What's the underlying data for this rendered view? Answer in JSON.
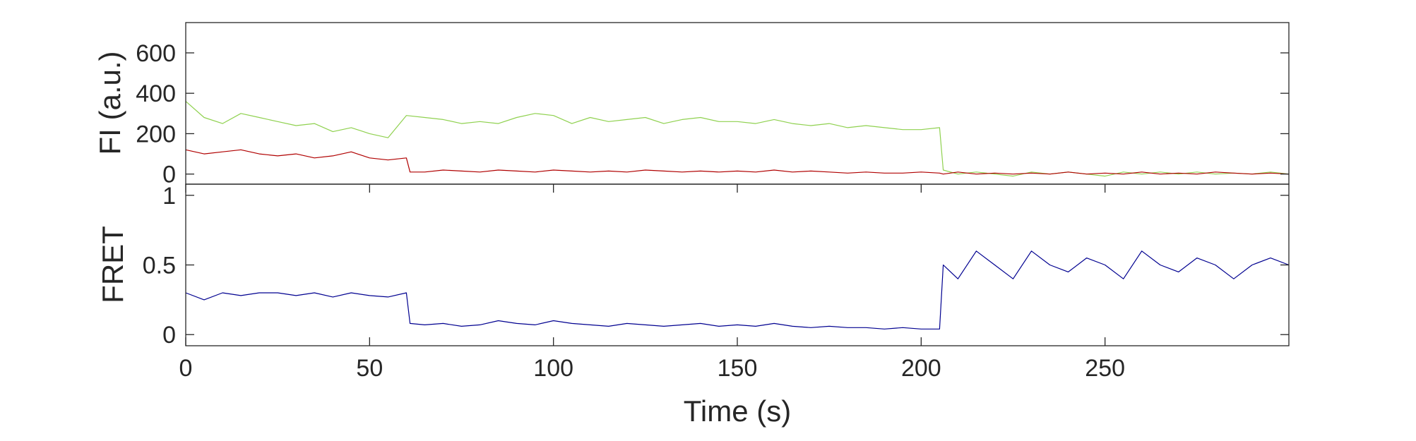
{
  "chart_data": [
    {
      "type": "line",
      "panel": "top",
      "title": "",
      "xlabel": "",
      "ylabel": "FI (a.u.)",
      "xlim": [
        0,
        300
      ],
      "ylim": [
        -50,
        750
      ],
      "yticks": [
        0,
        200,
        400,
        600
      ],
      "ytick_labels": [
        "0",
        "200",
        "400",
        "600"
      ],
      "grid": false,
      "legend": false,
      "colors": {
        "donor": "#8fd14f",
        "acceptor": "#b00000"
      },
      "series": [
        {
          "color": "#8fd14f",
          "x": [
            0,
            5,
            10,
            15,
            20,
            25,
            30,
            35,
            40,
            45,
            50,
            55,
            60,
            65,
            70,
            75,
            80,
            85,
            90,
            95,
            100,
            105,
            110,
            115,
            120,
            125,
            130,
            135,
            140,
            145,
            150,
            155,
            160,
            165,
            170,
            175,
            180,
            185,
            190,
            195,
            200,
            205,
            206,
            210,
            215,
            220,
            225,
            230,
            235,
            240,
            245,
            250,
            255,
            260,
            265,
            270,
            275,
            280,
            285,
            290,
            295,
            300
          ],
          "y": [
            360,
            280,
            250,
            300,
            280,
            260,
            240,
            250,
            210,
            230,
            200,
            180,
            290,
            280,
            270,
            250,
            260,
            250,
            280,
            300,
            290,
            250,
            280,
            260,
            270,
            280,
            250,
            270,
            280,
            260,
            260,
            250,
            270,
            250,
            240,
            250,
            230,
            240,
            230,
            220,
            220,
            230,
            20,
            0,
            10,
            0,
            -10,
            10,
            0,
            10,
            0,
            -10,
            10,
            0,
            10,
            0,
            10,
            0,
            5,
            0,
            10,
            0
          ]
        },
        {
          "color": "#b00000",
          "x": [
            0,
            5,
            10,
            15,
            20,
            25,
            30,
            35,
            40,
            45,
            50,
            55,
            60,
            61,
            65,
            70,
            75,
            80,
            85,
            90,
            95,
            100,
            105,
            110,
            115,
            120,
            125,
            130,
            135,
            140,
            145,
            150,
            155,
            160,
            165,
            170,
            175,
            180,
            185,
            190,
            195,
            200,
            205,
            206,
            210,
            215,
            220,
            225,
            230,
            235,
            240,
            245,
            250,
            255,
            260,
            265,
            270,
            275,
            280,
            285,
            290,
            295,
            300
          ],
          "y": [
            120,
            100,
            110,
            120,
            100,
            90,
            100,
            80,
            90,
            110,
            80,
            70,
            80,
            10,
            10,
            20,
            15,
            10,
            20,
            15,
            10,
            20,
            15,
            10,
            15,
            10,
            20,
            15,
            10,
            15,
            10,
            15,
            10,
            20,
            10,
            15,
            10,
            5,
            10,
            5,
            5,
            10,
            5,
            0,
            10,
            0,
            5,
            0,
            5,
            0,
            10,
            0,
            5,
            0,
            10,
            0,
            5,
            0,
            10,
            5,
            0,
            5,
            0
          ]
        }
      ]
    },
    {
      "type": "line",
      "panel": "bottom",
      "title": "",
      "xlabel": "Time (s)",
      "ylabel": "FRET",
      "xlim": [
        0,
        300
      ],
      "ylim": [
        -0.08,
        1.08
      ],
      "xticks": [
        0,
        50,
        100,
        150,
        200,
        250
      ],
      "xtick_labels": [
        "0",
        "50",
        "100",
        "150",
        "200",
        "250"
      ],
      "yticks": [
        0,
        0.5,
        1
      ],
      "ytick_labels": [
        "0",
        "0.5",
        "1"
      ],
      "grid": false,
      "legend": false,
      "series": [
        {
          "color": "#000090",
          "x": [
            0,
            5,
            10,
            15,
            20,
            25,
            30,
            35,
            40,
            45,
            50,
            55,
            60,
            61,
            65,
            70,
            75,
            80,
            85,
            90,
            95,
            100,
            105,
            110,
            115,
            120,
            125,
            130,
            135,
            140,
            145,
            150,
            155,
            160,
            165,
            170,
            175,
            180,
            185,
            190,
            195,
            200,
            205,
            206,
            210,
            215,
            220,
            225,
            230,
            235,
            240,
            245,
            250,
            255,
            260,
            265,
            270,
            275,
            280,
            285,
            290,
            295,
            300
          ],
          "y": [
            0.3,
            0.25,
            0.3,
            0.28,
            0.3,
            0.3,
            0.28,
            0.3,
            0.27,
            0.3,
            0.28,
            0.27,
            0.3,
            0.08,
            0.07,
            0.08,
            0.06,
            0.07,
            0.1,
            0.08,
            0.07,
            0.1,
            0.08,
            0.07,
            0.06,
            0.08,
            0.07,
            0.06,
            0.07,
            0.08,
            0.06,
            0.07,
            0.06,
            0.08,
            0.06,
            0.05,
            0.06,
            0.05,
            0.05,
            0.04,
            0.05,
            0.04,
            0.04,
            0.5,
            0.4,
            0.6,
            0.5,
            0.4,
            0.6,
            0.5,
            0.45,
            0.55,
            0.5,
            0.4,
            0.6,
            0.5,
            0.45,
            0.55,
            0.5,
            0.4,
            0.5,
            0.55,
            0.5
          ]
        }
      ]
    }
  ]
}
